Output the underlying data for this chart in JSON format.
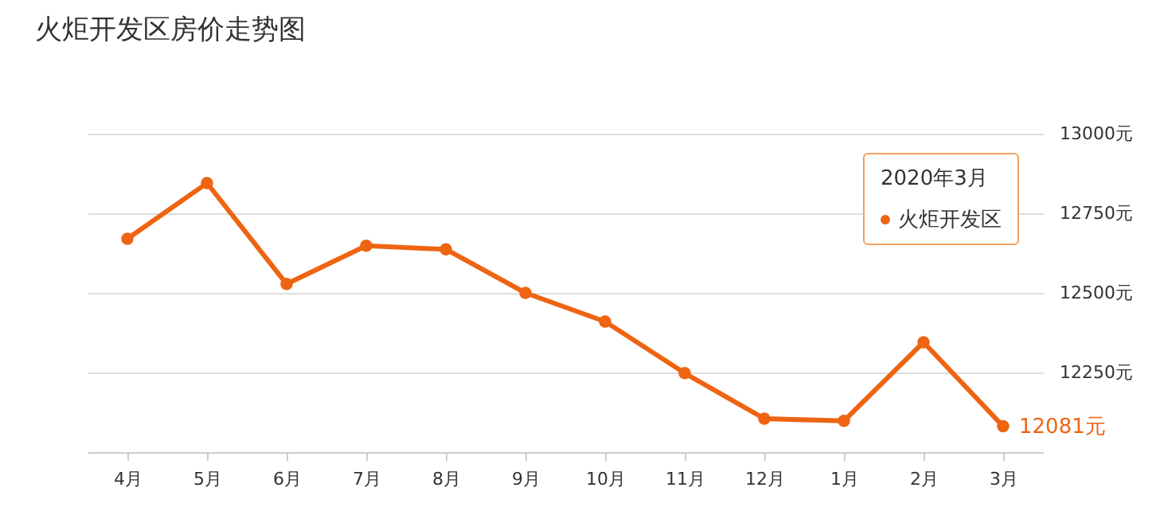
{
  "chart_data": {
    "type": "line",
    "title": "火炬开发区房价走势图",
    "categories": [
      "4月",
      "5月",
      "6月",
      "7月",
      "8月",
      "9月",
      "10月",
      "11月",
      "12月",
      "1月",
      "2月",
      "3月"
    ],
    "series": [
      {
        "name": "火炬开发区",
        "color": "#ee6411",
        "values": [
          12670,
          12845,
          12528,
          12648,
          12637,
          12500,
          12410,
          12248,
          12105,
          12098,
          12345,
          12081
        ],
        "value_labels": [
          null,
          null,
          null,
          null,
          null,
          null,
          null,
          null,
          null,
          null,
          null,
          "12081元"
        ]
      }
    ],
    "annotations": [
      "2020年3月"
    ],
    "ylim": [
      12000,
      13000
    ],
    "yticks": [
      {
        "value": 12000,
        "label": null
      },
      {
        "value": 12250,
        "label": "12250元"
      },
      {
        "value": 12500,
        "label": "12500元"
      },
      {
        "value": 12750,
        "label": "12750元"
      },
      {
        "value": 13000,
        "label": "13000元"
      }
    ],
    "grid": "y",
    "marker": "circle",
    "line_style": "solid",
    "legend": "top right"
  }
}
